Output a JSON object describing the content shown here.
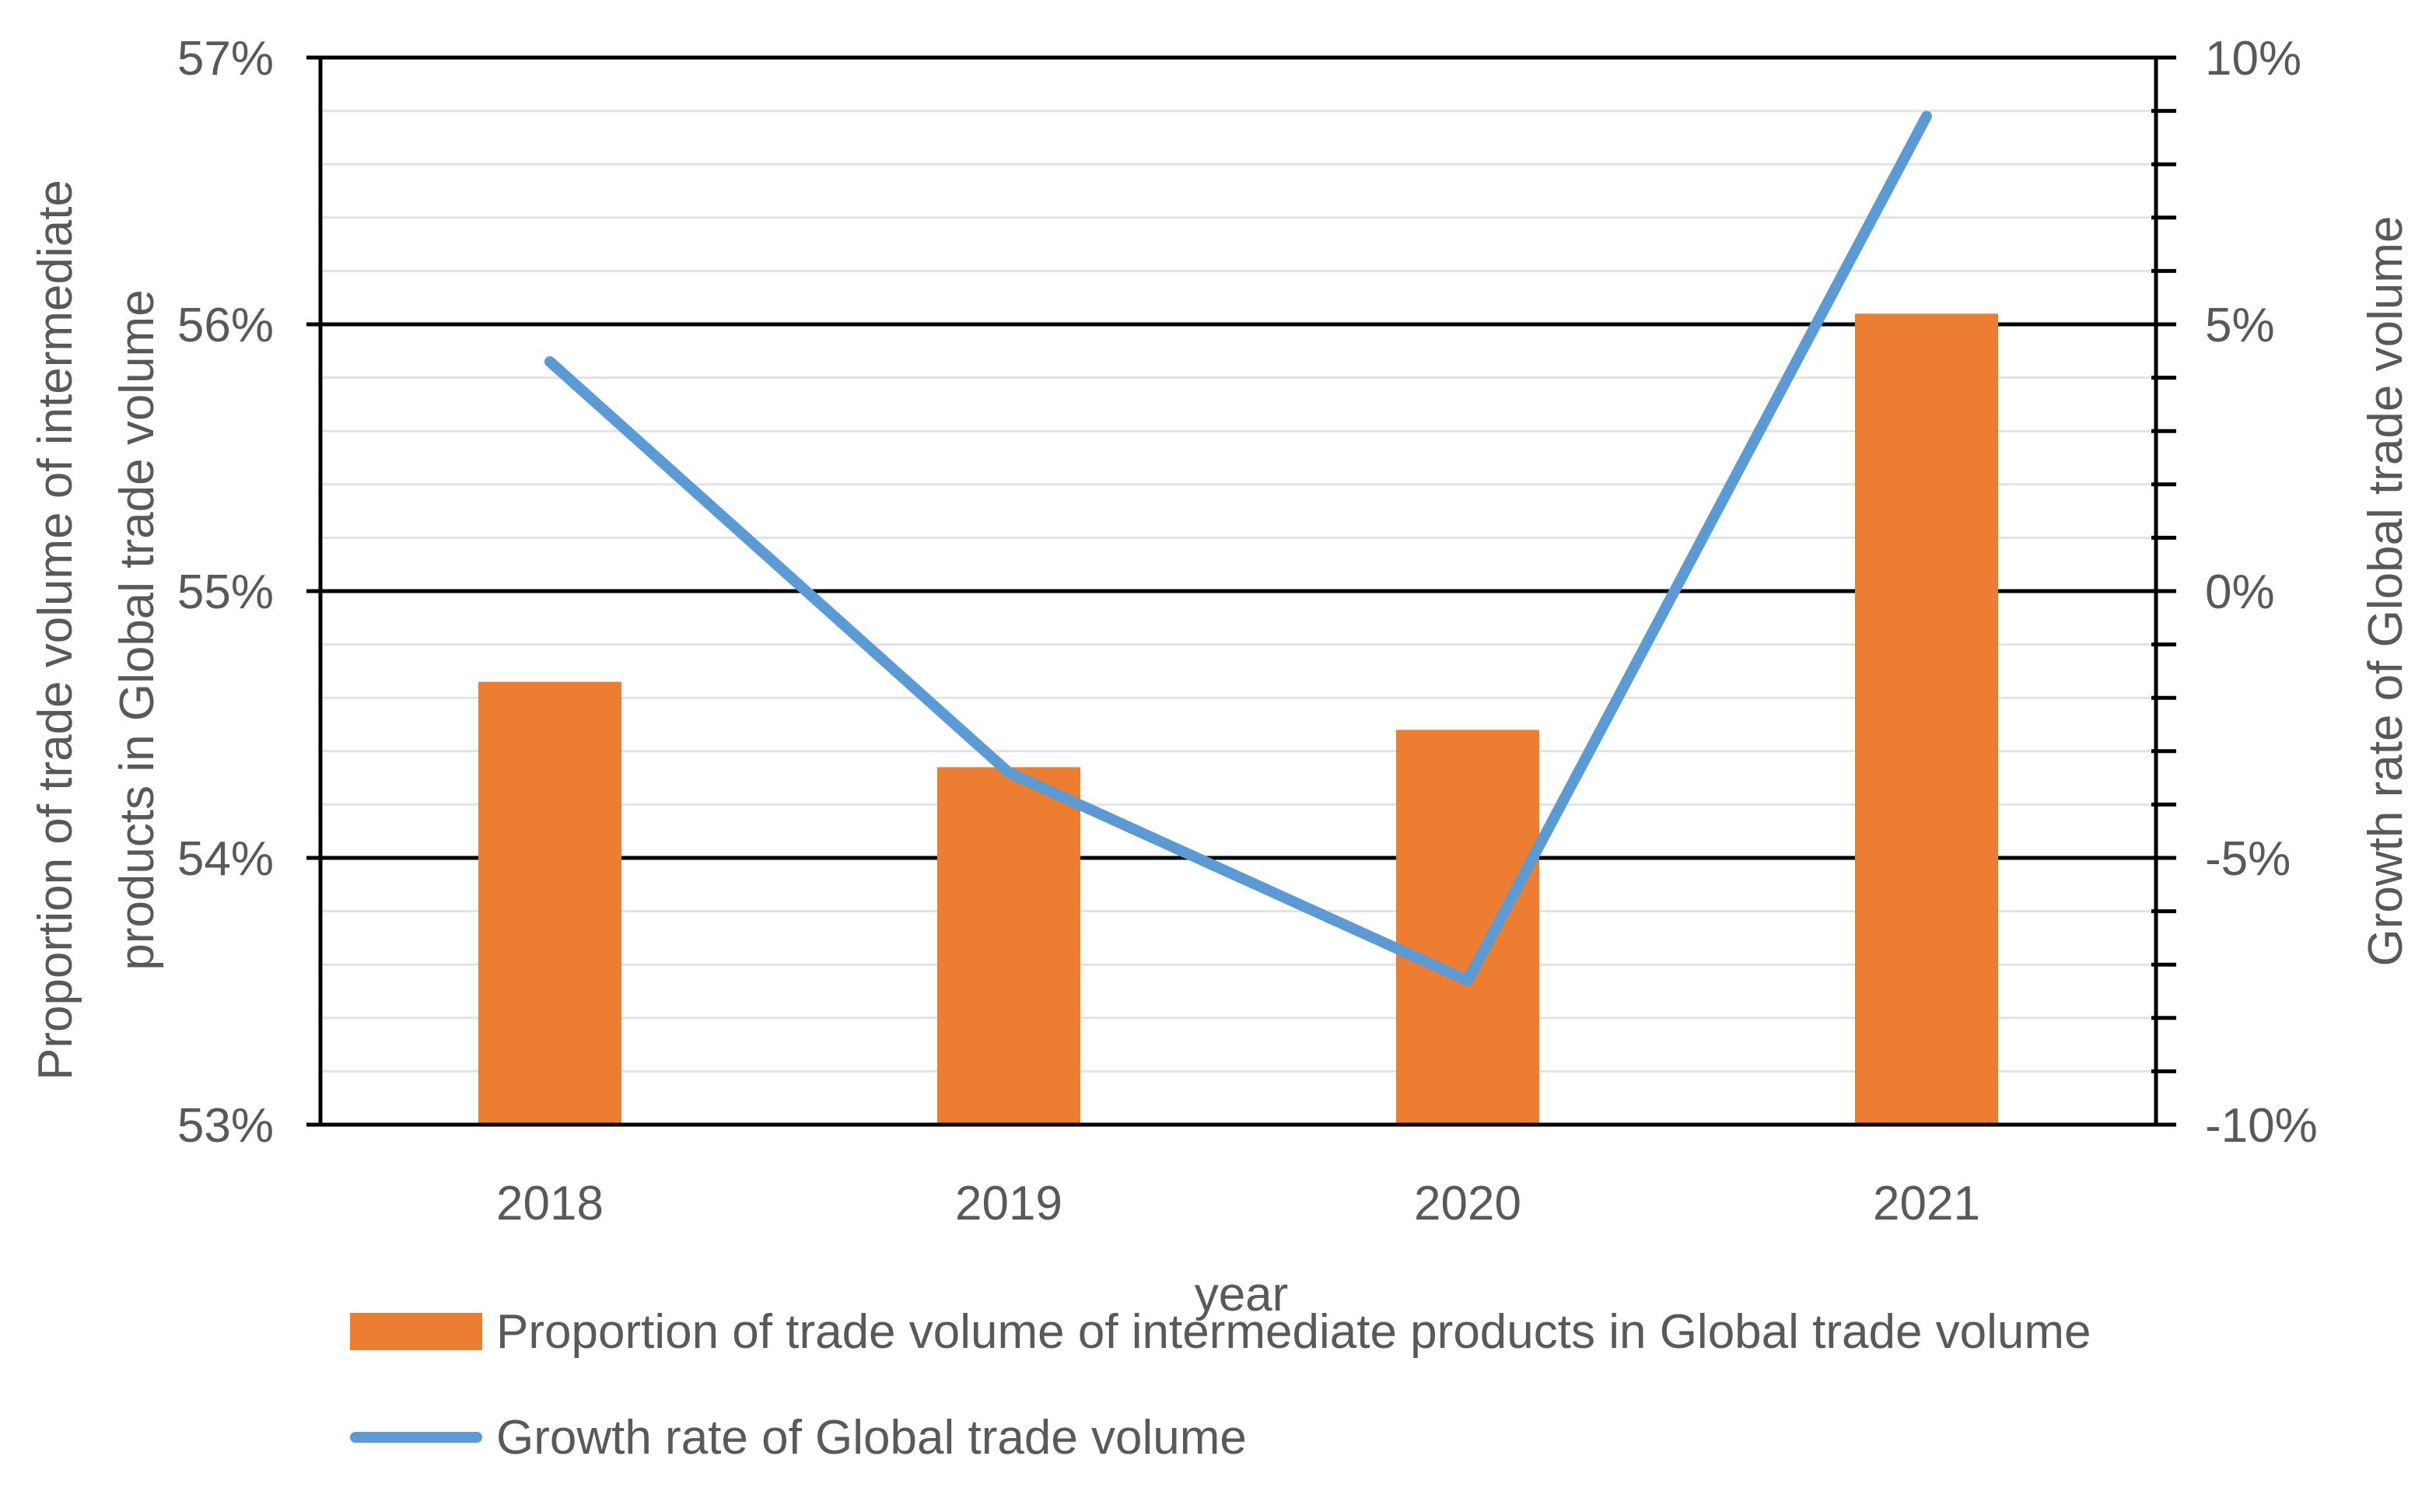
{
  "chart_data": {
    "type": "bar",
    "categories": [
      "2018",
      "2019",
      "2020",
      "2021"
    ],
    "xlabel": "year",
    "series": [
      {
        "name": "Proportion of trade volume of intermediate products in Global trade volume",
        "type": "bar",
        "axis": "left",
        "values": [
          54.66,
          54.34,
          54.48,
          56.04
        ],
        "color": "#ed7d31"
      },
      {
        "name": "Growth rate of Global trade volume",
        "type": "line",
        "axis": "right",
        "values": [
          4.3,
          -3.4,
          -7.3,
          8.9
        ],
        "color": "#5b9bd5"
      }
    ],
    "y_left": {
      "label_line1": "Proportion of trade volume of intermediate",
      "label_line2": "products in Global trade volume",
      "range": [
        53,
        57
      ],
      "ticks": [
        53,
        54,
        55,
        56,
        57
      ],
      "tick_labels": [
        "53%",
        "54%",
        "55%",
        "56%",
        "57%"
      ]
    },
    "y_right": {
      "label": "Growth rate of Global trade volume",
      "range": [
        -10,
        10
      ],
      "ticks": [
        -10,
        -5,
        0,
        5,
        10
      ],
      "tick_labels": [
        "-10%",
        "-5%",
        "0%",
        "5%",
        "10%"
      ]
    },
    "grid": true,
    "legend_position": "bottom"
  }
}
